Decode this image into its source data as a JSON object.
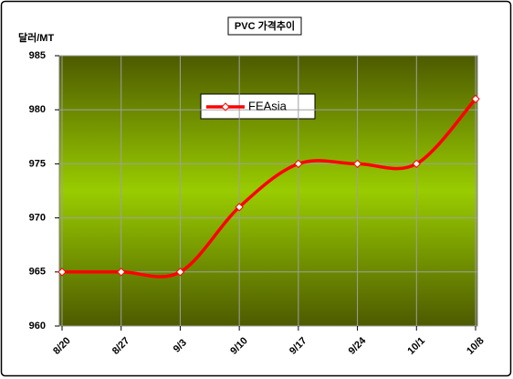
{
  "chart_data": {
    "type": "line",
    "title": "PVC 가격추이",
    "y_label": "달러/MT",
    "categories": [
      "8/20",
      "8/27",
      "9/3",
      "9/10",
      "9/17",
      "9/24",
      "10/1",
      "10/8"
    ],
    "series": [
      {
        "name": "FEAsia",
        "color": "#ff0000",
        "values": [
          965,
          965,
          965,
          971,
          975,
          975,
          975,
          981
        ]
      }
    ],
    "ylim": [
      960,
      985
    ],
    "yticks": [
      960,
      965,
      970,
      975,
      980,
      985
    ],
    "grid": true
  }
}
